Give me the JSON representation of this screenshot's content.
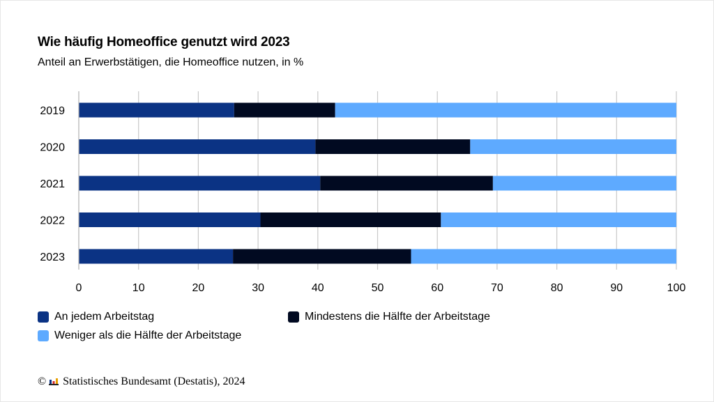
{
  "title": "Wie häufig Homeoffice genutzt wird 2023",
  "subtitle": "Anteil an Erwerbstätigen, die Homeoffice nutzen, in %",
  "source": {
    "copyright_symbol": "©",
    "text": "Statistisches Bundesamt (Destatis), 2024",
    "logo_icon": "destatis-bars-icon"
  },
  "colors": {
    "series_1": "#0b3384",
    "series_2": "#010a21",
    "series_3": "#5eaaff",
    "grid": "#c8c8c8"
  },
  "legend": [
    {
      "label": "An jedem Arbeitstag",
      "color": "#0b3384"
    },
    {
      "label": "Mindestens die Hälfte der Arbeitstage",
      "color": "#010a21"
    },
    {
      "label": "Weniger als die Hälfte der Arbeitstage",
      "color": "#5eaaff"
    }
  ],
  "chart_data": {
    "type": "bar",
    "orientation": "horizontal",
    "stacked": true,
    "title": "Wie häufig Homeoffice genutzt wird 2023",
    "subtitle": "Anteil an Erwerbstätigen, die Homeoffice nutzen, in %",
    "categories": [
      "2019",
      "2020",
      "2021",
      "2022",
      "2023"
    ],
    "series": [
      {
        "name": "An jedem Arbeitstag",
        "values": [
          26.0,
          39.6,
          40.4,
          30.4,
          25.8
        ]
      },
      {
        "name": "Mindestens die Hälfte der Arbeitstage",
        "values": [
          16.9,
          25.9,
          28.9,
          30.2,
          29.8
        ]
      },
      {
        "name": "Weniger als die Hälfte der Arbeitstage",
        "values": [
          57.1,
          34.5,
          30.7,
          39.4,
          44.4
        ]
      }
    ],
    "xlim": [
      0,
      100
    ],
    "xticks": [
      0,
      10,
      20,
      30,
      40,
      50,
      60,
      70,
      80,
      90,
      100
    ],
    "grid": true,
    "legend_position": "bottom"
  }
}
